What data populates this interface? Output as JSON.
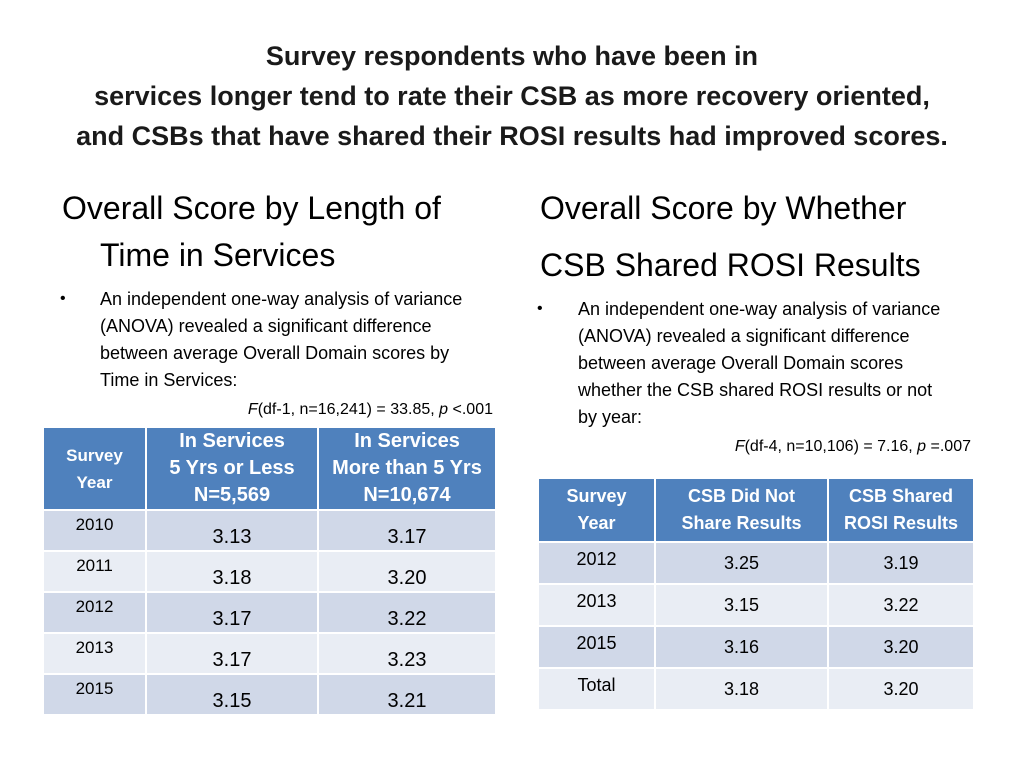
{
  "title": {
    "line1": "Survey respondents who have been in",
    "line2": "services longer tend to rate their CSB as more recovery oriented,",
    "line3": "and CSBs that have shared their ROSI results had improved scores."
  },
  "left": {
    "heading_line1": "Overall Score by Length of",
    "heading_line2": "Time in Services",
    "bullet_symbol": "•",
    "bullet_text": "An independent one-way analysis of variance (ANOVA) revealed a significant difference between average Overall Domain scores by Time in Services:",
    "stat_f": "F",
    "stat_mid": "(df-1,  n=16,241) = 33.85, ",
    "stat_p": "p",
    "stat_end": " <.001",
    "table": {
      "headers": {
        "year": [
          "Survey",
          "Year"
        ],
        "col1": [
          "In Services",
          "5 Yrs or Less",
          "N=5,569"
        ],
        "col2": [
          "In Services",
          "More than 5 Yrs",
          "N=10,674"
        ]
      },
      "rows": [
        {
          "year": "2010",
          "a": "3.13",
          "b": "3.17"
        },
        {
          "year": "2011",
          "a": "3.18",
          "b": "3.20"
        },
        {
          "year": "2012",
          "a": "3.17",
          "b": "3.22"
        },
        {
          "year": "2013",
          "a": "3.17",
          "b": "3.23"
        },
        {
          "year": "2015",
          "a": "3.15",
          "b": "3.21"
        }
      ]
    }
  },
  "right": {
    "heading_line1": "Overall Score by Whether",
    "heading_line2": "CSB Shared ROSI Results",
    "bullet_symbol": "•",
    "bullet_text": "An independent one-way analysis of variance (ANOVA) revealed a significant difference between average Overall Domain scores whether the CSB shared ROSI results or not by year:",
    "stat_f": "F",
    "stat_mid": "(df-4, n=10,106) = 7.16, ",
    "stat_p": "p",
    "stat_end": " =.007",
    "table": {
      "headers": {
        "year": [
          "Survey",
          "Year"
        ],
        "col1": [
          "CSB Did Not",
          "Share Results"
        ],
        "col2": [
          "CSB Shared",
          "ROSI Results"
        ]
      },
      "rows": [
        {
          "year": "2012",
          "a": "3.25",
          "b": "3.19"
        },
        {
          "year": "2013",
          "a": "3.15",
          "b": "3.22"
        },
        {
          "year": "2015",
          "a": "3.16",
          "b": "3.20"
        },
        {
          "year": "Total",
          "a": "3.18",
          "b": "3.20"
        }
      ]
    }
  },
  "colors": {
    "header_blue": "#4f81bd",
    "row_odd": "#d0d8e8",
    "row_even": "#e9edf4"
  }
}
